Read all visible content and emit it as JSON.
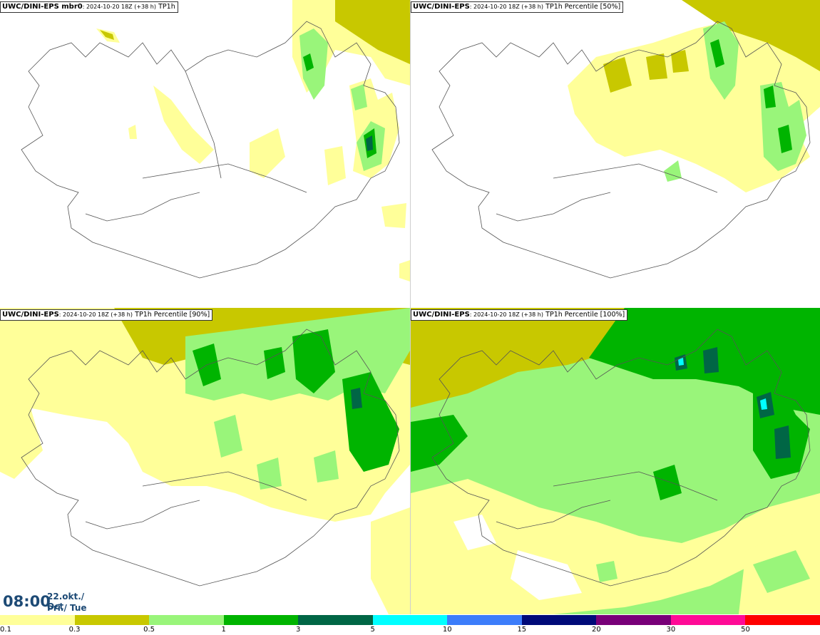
{
  "panels": [
    {
      "model": "UWC/DINI-EPS mbr0",
      "meta": ": 2024-10-20 18Z (+38 h)",
      "field": "TP1h"
    },
    {
      "model": "UWC/DINI-EPS",
      "meta": ": 2024-10-20 18Z (+38 h)",
      "field": "TP1h Percentile [50%]"
    },
    {
      "model": "UWC/DINI-EPS",
      "meta": ": 2024-10-20 18Z (+38 h)",
      "field": "TP1h Percentile [90%]"
    },
    {
      "model": "UWC/DINI-EPS",
      "meta": ": 2024-10-20 18Z (+38 h)",
      "field": "TP1h Percentile [100%]"
    }
  ],
  "valid_time": {
    "clock": "08:00",
    "date_line1": "22.okt./ Oct",
    "date_line2": "Þri./ Tue"
  },
  "legend": {
    "colors": [
      "#ffff99",
      "#c8c800",
      "#99f57a",
      "#00b400",
      "#006645",
      "#00ffff",
      "#3c7dfa",
      "#000a78",
      "#780078",
      "#ff0a96",
      "#ff0000"
    ],
    "ticks": [
      "0.1",
      "0.3",
      "0.5",
      "1",
      "3",
      "5",
      "10",
      "15",
      "20",
      "30",
      "50"
    ]
  },
  "colors": {
    "land_outline": "#555555",
    "roads": "#777777",
    "time_text": "#1d4a75"
  }
}
